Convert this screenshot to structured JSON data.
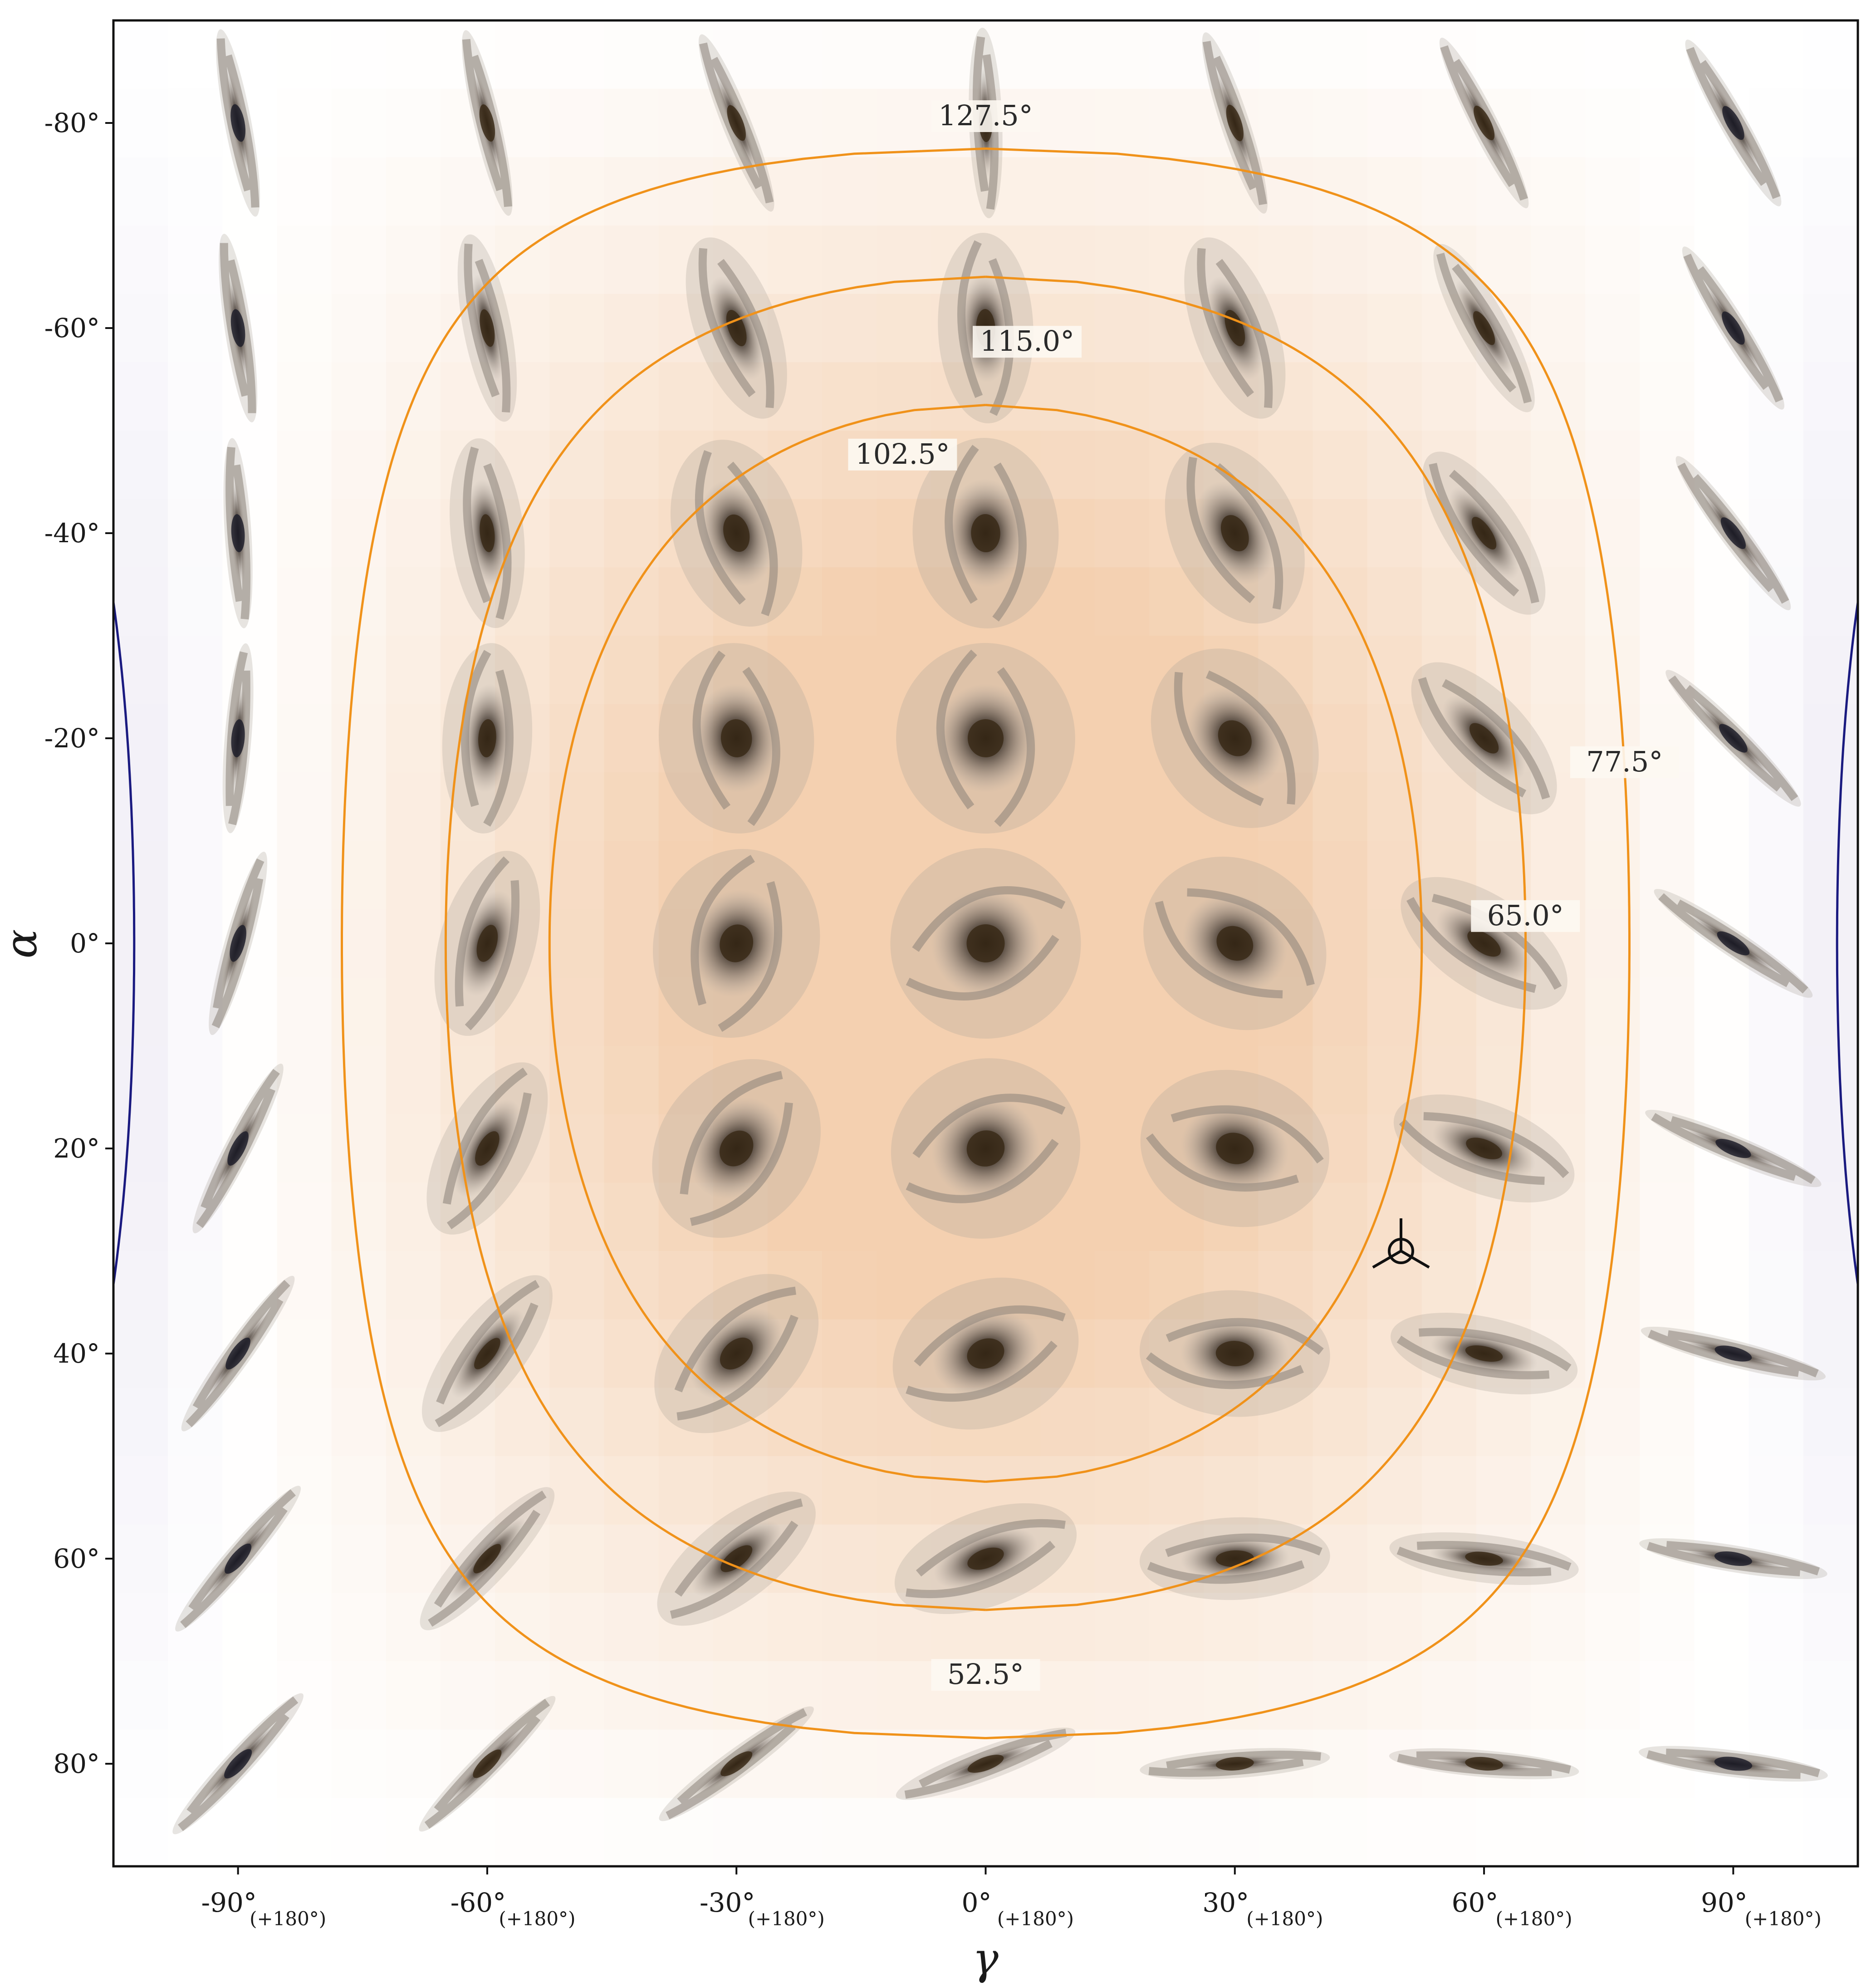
{
  "chart_data": {
    "type": "heatmap",
    "title": "",
    "xlabel": "γ",
    "ylabel": "α",
    "xlim": [
      -105,
      105
    ],
    "ylim": [
      -90,
      90
    ],
    "y_inverted": true,
    "grid": false,
    "xticks": [
      {
        "value": -90,
        "label": "-90°",
        "sublabel": "(+180°)"
      },
      {
        "value": -60,
        "label": "-60°",
        "sublabel": "(+180°)"
      },
      {
        "value": -30,
        "label": "-30°",
        "sublabel": "(+180°)"
      },
      {
        "value": 0,
        "label": "0°",
        "sublabel": "(+180°)"
      },
      {
        "value": 30,
        "label": "30°",
        "sublabel": "(+180°)"
      },
      {
        "value": 60,
        "label": "60°",
        "sublabel": "(+180°)"
      },
      {
        "value": 90,
        "label": "90°",
        "sublabel": "(+180°)"
      }
    ],
    "yticks": [
      {
        "value": -80,
        "label": "-80°"
      },
      {
        "value": -60,
        "label": "-60°"
      },
      {
        "value": -40,
        "label": "-40°"
      },
      {
        "value": -20,
        "label": "-20°"
      },
      {
        "value": 0,
        "label": "0°"
      },
      {
        "value": 20,
        "label": "20°"
      },
      {
        "value": 40,
        "label": "40°"
      },
      {
        "value": 60,
        "label": "60°"
      },
      {
        "value": 80,
        "label": "80°"
      }
    ],
    "colormap": {
      "low": "#e8a060",
      "mid": "#ffffff",
      "high": "#8a78b8",
      "center_value": 90
    },
    "contours": [
      {
        "level": 52.5,
        "label": "52.5°",
        "color": "#f0921a"
      },
      {
        "level": 65.0,
        "label": "65.0°",
        "color": "#f0921a"
      },
      {
        "level": 77.5,
        "label": "77.5°",
        "color": "#f0921a"
      },
      {
        "level": 102.5,
        "label": "102.5°",
        "color": "#1a1a80"
      },
      {
        "level": 115.0,
        "label": "115.0°",
        "color": "#1a1a80"
      },
      {
        "level": 127.5,
        "label": "127.5°",
        "color": "#1a1a80"
      }
    ],
    "thumbnail_grid": {
      "gamma": [
        -90,
        -60,
        -30,
        0,
        30,
        60,
        90
      ],
      "alpha": [
        -80,
        -60,
        -40,
        -20,
        0,
        20,
        40,
        60,
        80
      ]
    },
    "marker": {
      "gamma": 50,
      "alpha": 30,
      "symbol": "circled-tripod"
    }
  }
}
